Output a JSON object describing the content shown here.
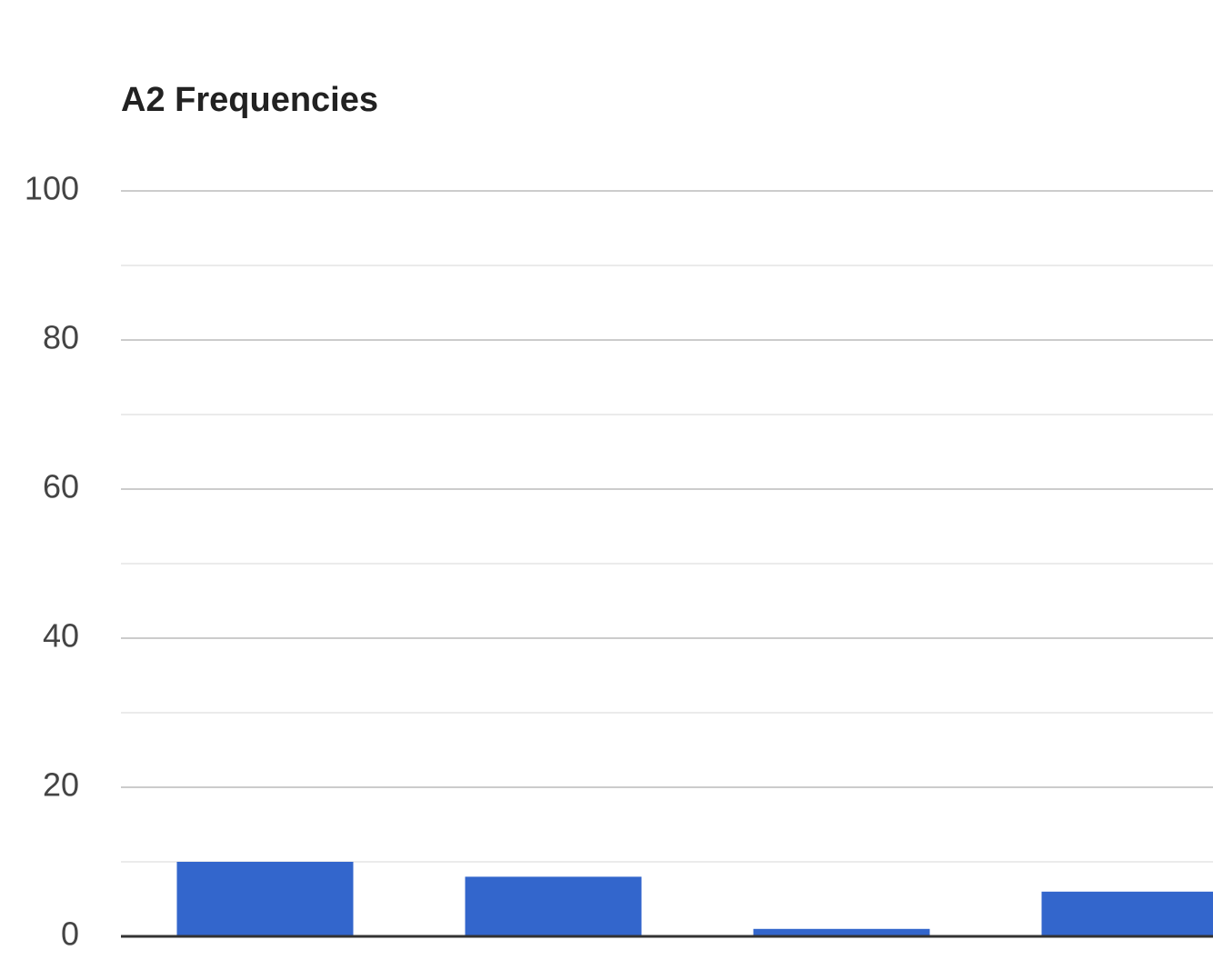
{
  "chart_data": {
    "type": "bar",
    "title": "A2 Frequencies",
    "categories": [
      null,
      null,
      null,
      null
    ],
    "values": [
      10,
      8,
      1,
      6
    ],
    "color": "#3366cc",
    "ylim": [
      0,
      100
    ],
    "yticks": [
      0,
      20,
      40,
      60,
      80,
      100
    ],
    "minor_gridlines": [
      10,
      30,
      50,
      70,
      90
    ],
    "grid": true
  }
}
